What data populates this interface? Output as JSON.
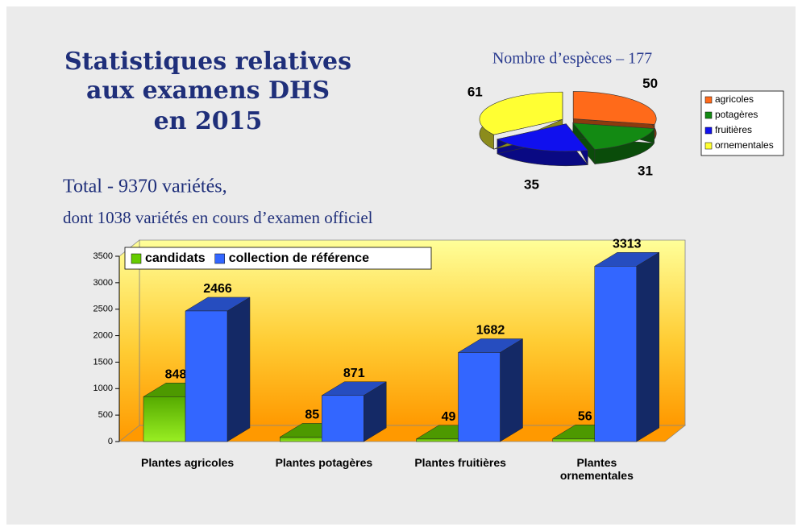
{
  "slide": {
    "title": [
      "Statistiques relatives",
      "aux examens DHS",
      "en 2015"
    ],
    "total": "Total - 9370 variétés,",
    "detail": "dont 1038 variétés en cours d’examen officiel"
  },
  "chart_data": [
    {
      "type": "pie",
      "title": "Nombre d’espèces – 177",
      "categories": [
        "agricoles",
        "potagères",
        "fruitières",
        "ornementales"
      ],
      "values": [
        50,
        31,
        35,
        61
      ],
      "colors": [
        "#ff6a1a",
        "#138a13",
        "#1010ee",
        "#ffff33"
      ],
      "legend": "right"
    },
    {
      "type": "bar3d",
      "categories": [
        "Plantes agricoles",
        "Plantes potagères",
        "Plantes fruitières",
        "Plantes ornementales"
      ],
      "series": [
        {
          "name": "candidats",
          "color": "#66cc00",
          "values": [
            848,
            85,
            49,
            56
          ]
        },
        {
          "name": "collection de référence",
          "color": "#3366ff",
          "values": [
            2466,
            871,
            1682,
            3313
          ]
        }
      ],
      "ylim": [
        0,
        3500
      ],
      "yticks": [
        0,
        500,
        1000,
        1500,
        2000,
        2500,
        3000,
        3500
      ],
      "legend": "top-left"
    }
  ]
}
